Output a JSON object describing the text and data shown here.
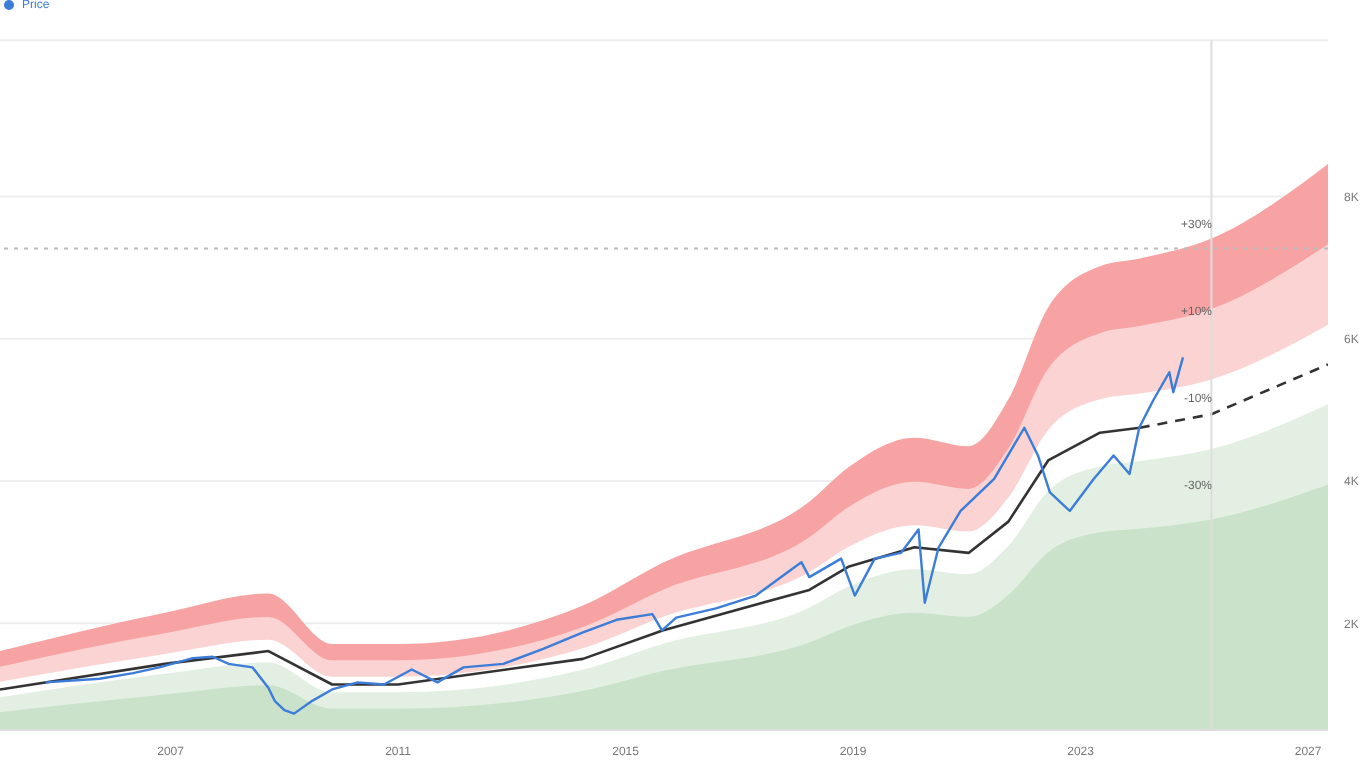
{
  "chart_data": {
    "type": "line",
    "xlim": [
      2004,
      2027.35
    ],
    "xticks": [
      2007,
      2011,
      2015,
      2019,
      2023,
      2027
    ],
    "ylim": [
      500,
      10200
    ],
    "yticks": [
      {
        "value": 2000,
        "label": "2K"
      },
      {
        "value": 4000,
        "label": "4K"
      },
      {
        "value": 6000,
        "label": "6K"
      },
      {
        "value": 8000,
        "label": "8K"
      }
    ],
    "grid": "y",
    "legend": "top left",
    "marker": "none",
    "series": [
      {
        "type": "area",
        "color": "#f7a3a3",
        "x": [
          2004.0,
          2006.9,
          2008.72,
          2009.84,
          2011.0,
          2014.25,
          2015.65,
          2018.23,
          2018.93,
          2020.08,
          2021.03,
          2021.73,
          2022.43,
          2023.34,
          2024.04,
          2025.3,
          2027.35
        ],
        "values": [
          1610,
          2150,
          2420,
          1710,
          1710,
          2250,
          2850,
          3710,
          4200,
          4610,
          4490,
          5150,
          6440,
          7020,
          7130,
          7410,
          8460
        ]
      },
      {
        "type": "area",
        "color": "#fbd3d3",
        "x": [
          2004.0,
          2006.9,
          2008.72,
          2009.84,
          2011.0,
          2014.25,
          2015.65,
          2018.23,
          2018.93,
          2020.08,
          2021.03,
          2021.73,
          2022.43,
          2023.34,
          2024.04,
          2025.3,
          2027.35
        ],
        "values": [
          1390,
          1860,
          2090,
          1480,
          1480,
          1950,
          2470,
          3210,
          3640,
          3990,
          3890,
          4460,
          5580,
          6080,
          6180,
          6420,
          7330
        ]
      },
      {
        "type": "area",
        "color": "#ffffff",
        "x": [
          2004.0,
          2006.9,
          2008.72,
          2009.84,
          2011.0,
          2014.25,
          2015.65,
          2018.23,
          2018.93,
          2020.08,
          2021.03,
          2021.73,
          2022.43,
          2023.34,
          2024.04,
          2025.3,
          2027.35
        ],
        "values": [
          1180,
          1570,
          1770,
          1250,
          1250,
          1650,
          2090,
          2720,
          3080,
          3380,
          3290,
          3770,
          4720,
          5150,
          5230,
          5430,
          6200
        ]
      },
      {
        "type": "area",
        "color": "#e2efe2",
        "x": [
          2004.0,
          2006.9,
          2008.72,
          2009.84,
          2011.0,
          2014.25,
          2015.65,
          2018.23,
          2018.93,
          2020.08,
          2021.03,
          2021.73,
          2022.43,
          2023.34,
          2024.04,
          2025.3,
          2027.35
        ],
        "values": [
          960,
          1290,
          1450,
          1030,
          1030,
          1350,
          1710,
          2220,
          2520,
          2760,
          2690,
          3090,
          3860,
          4210,
          4280,
          4450,
          5080
        ]
      },
      {
        "type": "area",
        "color": "#c9e2c9",
        "x": [
          2004.0,
          2006.9,
          2008.72,
          2009.84,
          2011.0,
          2014.25,
          2015.65,
          2018.23,
          2018.93,
          2020.08,
          2021.03,
          2021.73,
          2022.43,
          2023.34,
          2024.04,
          2025.3,
          2027.35
        ],
        "values": [
          750,
          1000,
          1130,
          800,
          800,
          1050,
          1330,
          1730,
          1960,
          2150,
          2090,
          2400,
          3000,
          3280,
          3330,
          3460,
          3950
        ]
      },
      {
        "color": "#333333",
        "x": [
          2004.0,
          2006.9,
          2008.72,
          2009.84,
          2011.0,
          2014.25,
          2015.65,
          2018.23,
          2018.93,
          2020.08,
          2021.03,
          2021.73,
          2022.43,
          2023.34,
          2024.04
        ],
        "values": [
          1070,
          1430,
          1610,
          1140,
          1140,
          1500,
          1900,
          2470,
          2800,
          3070,
          2990,
          3430,
          4290,
          4680,
          4750
        ]
      },
      {
        "color": "#333333",
        "line_style": "dashed",
        "x": [
          2024.04,
          2025.3,
          2027.35
        ],
        "values": [
          4750,
          4940,
          5640
        ]
      },
      {
        "name": "Price",
        "color": "#3b7dd8",
        "x": [
          2004.8,
          2005.75,
          2006.34,
          2006.8,
          2007.39,
          2007.74,
          2008.02,
          2008.44,
          2008.72,
          2008.83,
          2009.0,
          2009.17,
          2009.49,
          2009.84,
          2010.29,
          2010.75,
          2011.24,
          2011.69,
          2012.15,
          2012.85,
          2013.55,
          2014.24,
          2014.84,
          2015.47,
          2015.64,
          2015.89,
          2016.59,
          2017.29,
          2018.09,
          2018.23,
          2018.79,
          2019.03,
          2019.38,
          2019.84,
          2020.15,
          2020.26,
          2020.5,
          2020.89,
          2021.48,
          2022.01,
          2022.25,
          2022.46,
          2022.81,
          2023.23,
          2023.58,
          2023.86,
          2024.03,
          2024.28,
          2024.56,
          2024.63,
          2024.8
        ],
        "values": [
          1170,
          1220,
          1300,
          1380,
          1510,
          1530,
          1430,
          1380,
          1090,
          910,
          780,
          730,
          910,
          1070,
          1170,
          1140,
          1350,
          1170,
          1380,
          1430,
          1640,
          1870,
          2050,
          2130,
          1900,
          2080,
          2210,
          2390,
          2860,
          2650,
          2910,
          2390,
          2910,
          2990,
          3320,
          2290,
          3060,
          3580,
          4030,
          4750,
          4360,
          3840,
          3580,
          4030,
          4360,
          4100,
          4750,
          5140,
          5530,
          5250,
          5740
        ]
      }
    ],
    "ref_lines": [
      {
        "axis": "x",
        "value": 2025.3,
        "color": "#dddddd"
      },
      {
        "axis": "y",
        "value": 7270,
        "color": "#bbbbbb",
        "line_style": "dotted"
      }
    ],
    "annotations": [
      "+30%",
      "+10%",
      "-10%",
      "-30%"
    ]
  }
}
